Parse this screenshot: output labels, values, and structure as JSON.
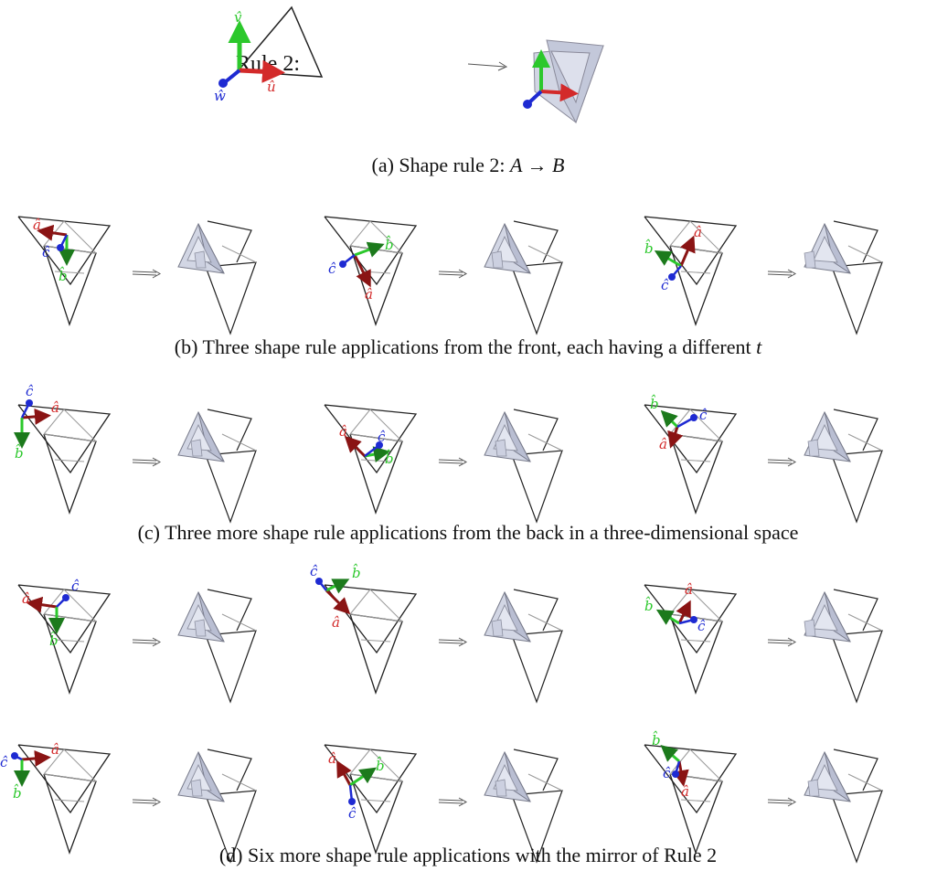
{
  "rule_label": "Rule 2:",
  "rule_axes": [
    "v̂",
    "û",
    "ŵ"
  ],
  "captions": {
    "a": "(a) Shape rule 2: ",
    "a_math": "A → B",
    "b": "(b) Three shape rule applications from the front, each having a different ",
    "b_math": "t",
    "c": "(c) Three more shape rule applications from the back in a three-dimensional space",
    "d": "(d) Six more shape rule applications with the mirror of Rule 2"
  },
  "frame_labels": {
    "a": "â",
    "b": "b̂",
    "c": "ĉ"
  },
  "colors": {
    "line": "#222222",
    "thin_line": "#9a9a9a",
    "fill": "#d2d6e4",
    "fill_dark": "#b9bed2",
    "red": "#d32a2a",
    "dark_red": "#8a1414",
    "green": "#2cc82c",
    "blue": "#1e2ad2",
    "arrow": "#555555"
  }
}
